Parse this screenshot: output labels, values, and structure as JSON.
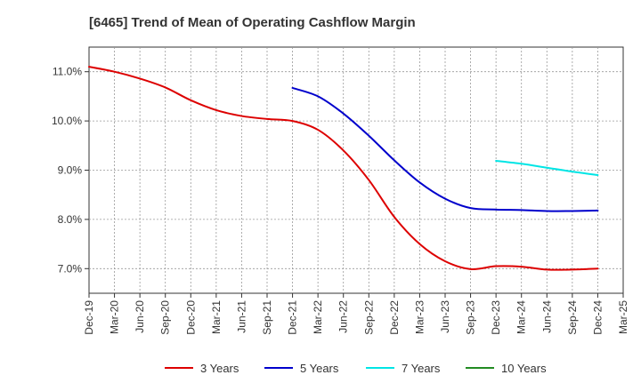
{
  "chart_data": {
    "type": "line",
    "title": "[6465]  Trend of Mean of Operating Cashflow Margin",
    "xlabel": "",
    "ylabel": "",
    "ylim": [
      6.5,
      11.5
    ],
    "grid": true,
    "legend_position": "bottom",
    "x": [
      "Dec-19",
      "Mar-20",
      "Jun-20",
      "Sep-20",
      "Dec-20",
      "Mar-21",
      "Jun-21",
      "Sep-21",
      "Dec-21",
      "Mar-22",
      "Jun-22",
      "Sep-22",
      "Dec-22",
      "Mar-23",
      "Jun-23",
      "Sep-23",
      "Dec-23",
      "Mar-24",
      "Jun-24",
      "Sep-24",
      "Dec-24",
      "Mar-25"
    ],
    "y_ticks": [
      {
        "value": 7.0,
        "label": "7.0%"
      },
      {
        "value": 8.0,
        "label": "8.0%"
      },
      {
        "value": 9.0,
        "label": "9.0%"
      },
      {
        "value": 10.0,
        "label": "10.0%"
      },
      {
        "value": 11.0,
        "label": "11.0%"
      }
    ],
    "series": [
      {
        "name": "3 Years",
        "color": "#dd0000",
        "values": [
          11.1,
          11.0,
          10.86,
          10.68,
          10.42,
          10.22,
          10.1,
          10.04,
          10.0,
          9.82,
          9.4,
          8.8,
          8.05,
          7.5,
          7.15,
          6.99,
          7.05,
          7.04,
          6.98,
          6.98,
          7.0,
          null
        ]
      },
      {
        "name": "5 Years",
        "color": "#0000cc",
        "values": [
          null,
          null,
          null,
          null,
          null,
          null,
          null,
          null,
          10.67,
          10.5,
          10.15,
          9.7,
          9.2,
          8.75,
          8.42,
          8.23,
          8.2,
          8.19,
          8.17,
          8.17,
          8.18,
          null
        ]
      },
      {
        "name": "7 Years",
        "color": "#00e5e5",
        "values": [
          null,
          null,
          null,
          null,
          null,
          null,
          null,
          null,
          null,
          null,
          null,
          null,
          null,
          null,
          null,
          null,
          9.19,
          9.13,
          9.05,
          8.97,
          8.9,
          null
        ]
      },
      {
        "name": "10 Years",
        "color": "#228b22",
        "values": [
          null,
          null,
          null,
          null,
          null,
          null,
          null,
          null,
          null,
          null,
          null,
          null,
          null,
          null,
          null,
          null,
          null,
          null,
          null,
          null,
          null,
          null
        ]
      }
    ]
  }
}
